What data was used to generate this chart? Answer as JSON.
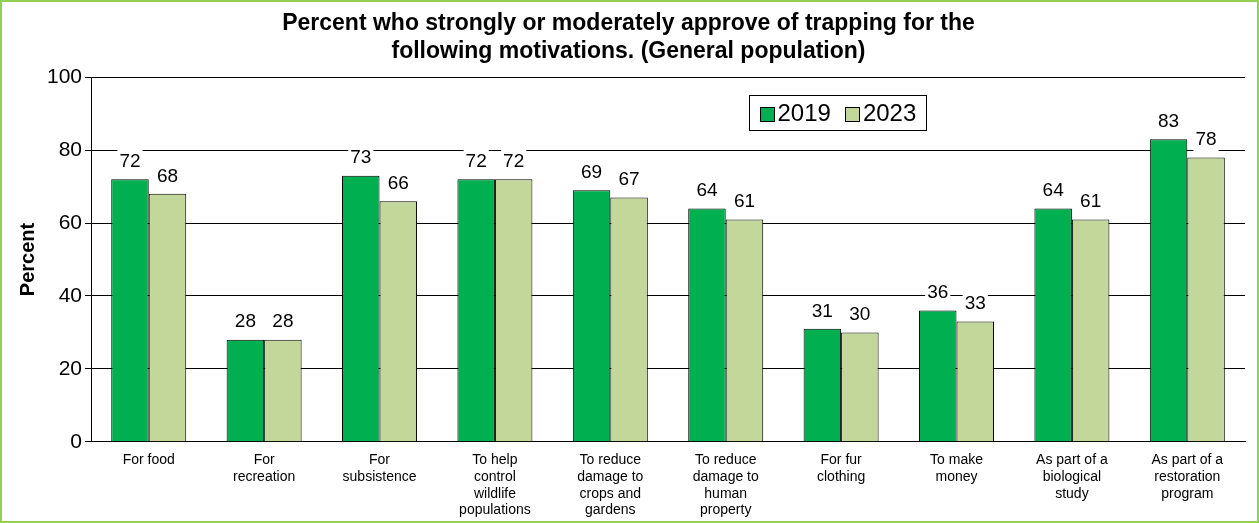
{
  "chart_data": {
    "type": "bar",
    "title": "Percent who strongly or moderately approve of trapping for the following motivations. (General population)",
    "ylabel": "Percent",
    "categories": [
      "For food",
      "For recreation",
      "For subsistence",
      "To help control wildlife populations",
      "To reduce damage to crops and gardens",
      "To reduce damage to human property",
      "For fur clothing",
      "To make money",
      "As part of a biological study",
      "As part of a restoration program"
    ],
    "series": [
      {
        "name": "2019",
        "color": "#00b050",
        "values": [
          72,
          28,
          73,
          72,
          69,
          64,
          31,
          36,
          64,
          83
        ]
      },
      {
        "name": "2023",
        "color": "#c4d79b",
        "values": [
          68,
          28,
          66,
          72,
          67,
          61,
          30,
          33,
          61,
          78
        ]
      }
    ],
    "ylim": [
      0,
      100
    ],
    "yticks": [
      0,
      20,
      40,
      60,
      80,
      100
    ],
    "grid": "y",
    "legend": "top",
    "data_labels": true
  }
}
